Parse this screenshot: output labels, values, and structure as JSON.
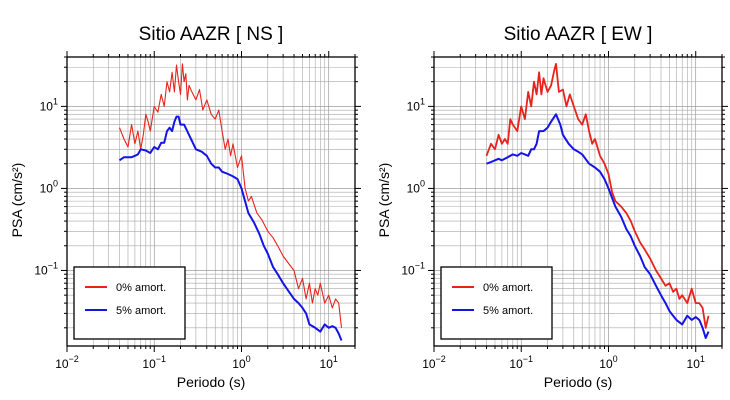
{
  "chart_data": [
    {
      "type": "line",
      "title": "Sitio AAZR [ NS ]",
      "xlabel": "Periodo (s)",
      "ylabel": "PSA (cm/s²)",
      "xscale": "log",
      "yscale": "log",
      "xlim": [
        0.01,
        20
      ],
      "ylim": [
        0.012,
        40
      ],
      "grid": true,
      "legend_position": "bottom-left",
      "xticks": [
        {
          "value": 0.01,
          "base": "10",
          "exp": "−2"
        },
        {
          "value": 0.1,
          "base": "10",
          "exp": "−1"
        },
        {
          "value": 1,
          "base": "10",
          "exp": "0"
        },
        {
          "value": 10,
          "base": "10",
          "exp": "1"
        }
      ],
      "yticks": [
        {
          "value": 0.1,
          "base": "10",
          "exp": "−1"
        },
        {
          "value": 1,
          "base": "10",
          "exp": "0"
        },
        {
          "value": 10,
          "base": "10",
          "exp": "1"
        }
      ],
      "series": [
        {
          "name": "0% amort.",
          "color": "#e8231c",
          "x": [
            0.04,
            0.045,
            0.05,
            0.055,
            0.06,
            0.065,
            0.07,
            0.075,
            0.08,
            0.085,
            0.09,
            0.1,
            0.11,
            0.12,
            0.13,
            0.14,
            0.15,
            0.16,
            0.17,
            0.18,
            0.19,
            0.2,
            0.21,
            0.22,
            0.23,
            0.24,
            0.25,
            0.27,
            0.3,
            0.33,
            0.36,
            0.4,
            0.45,
            0.5,
            0.55,
            0.6,
            0.65,
            0.7,
            0.75,
            0.8,
            0.9,
            1.0,
            1.1,
            1.2,
            1.3,
            1.5,
            1.7,
            2.0,
            2.3,
            2.6,
            3.0,
            3.5,
            4.0,
            4.5,
            5.0,
            5.5,
            6.0,
            6.5,
            7.0,
            7.5,
            8.0,
            9.0,
            10.0,
            11.0,
            12.0,
            13.0,
            14.0
          ],
          "values": [
            5.5,
            4.0,
            3.2,
            6.0,
            3.5,
            5.0,
            3.0,
            4.5,
            8.0,
            6.5,
            5.0,
            10.0,
            8.5,
            14.0,
            10.0,
            20.0,
            15.0,
            26.0,
            15.0,
            32.0,
            20.0,
            14.0,
            33.0,
            20.0,
            25.0,
            12.0,
            18.0,
            15.0,
            12.0,
            16.0,
            9.0,
            12.0,
            8.0,
            7.0,
            9.0,
            5.0,
            3.0,
            4.0,
            2.5,
            3.5,
            1.8,
            2.5,
            1.0,
            0.7,
            0.8,
            0.5,
            0.42,
            0.3,
            0.25,
            0.2,
            0.15,
            0.12,
            0.1,
            0.06,
            0.08,
            0.045,
            0.07,
            0.04,
            0.06,
            0.05,
            0.07,
            0.04,
            0.05,
            0.035,
            0.045,
            0.04,
            0.02
          ]
        },
        {
          "name": "5% amort.",
          "color": "#1414e6",
          "x": [
            0.04,
            0.045,
            0.05,
            0.055,
            0.06,
            0.065,
            0.07,
            0.08,
            0.09,
            0.1,
            0.11,
            0.12,
            0.13,
            0.14,
            0.15,
            0.16,
            0.17,
            0.18,
            0.19,
            0.2,
            0.22,
            0.25,
            0.28,
            0.3,
            0.35,
            0.4,
            0.45,
            0.5,
            0.55,
            0.6,
            0.7,
            0.8,
            0.9,
            1.0,
            1.2,
            1.4,
            1.6,
            1.8,
            2.0,
            2.3,
            2.6,
            3.0,
            3.5,
            4.0,
            4.5,
            5.0,
            5.5,
            6.0,
            7.0,
            8.0,
            9.0,
            10.0,
            11.0,
            12.0,
            13.0,
            14.0
          ],
          "values": [
            2.2,
            2.4,
            2.4,
            2.4,
            2.5,
            2.6,
            3.0,
            2.9,
            2.7,
            3.2,
            3.0,
            3.6,
            3.6,
            5.0,
            5.5,
            5.0,
            6.5,
            7.5,
            7.5,
            6.0,
            6.0,
            4.5,
            3.5,
            3.0,
            2.8,
            2.5,
            2.0,
            1.8,
            1.8,
            1.6,
            1.5,
            1.4,
            1.3,
            1.0,
            0.5,
            0.38,
            0.28,
            0.2,
            0.16,
            0.11,
            0.09,
            0.07,
            0.055,
            0.045,
            0.04,
            0.035,
            0.03,
            0.022,
            0.02,
            0.018,
            0.022,
            0.02,
            0.021,
            0.02,
            0.017,
            0.014
          ]
        }
      ]
    },
    {
      "type": "line",
      "title": "Sitio AAZR [ EW ]",
      "xlabel": "Periodo (s)",
      "ylabel": "PSA (cm/s²)",
      "xscale": "log",
      "yscale": "log",
      "xlim": [
        0.01,
        20
      ],
      "ylim": [
        0.012,
        40
      ],
      "grid": true,
      "legend_position": "bottom-left",
      "xticks": [
        {
          "value": 0.01,
          "base": "10",
          "exp": "−2"
        },
        {
          "value": 0.1,
          "base": "10",
          "exp": "−1"
        },
        {
          "value": 1,
          "base": "10",
          "exp": "0"
        },
        {
          "value": 10,
          "base": "10",
          "exp": "1"
        }
      ],
      "yticks": [
        {
          "value": 0.1,
          "base": "10",
          "exp": "−1"
        },
        {
          "value": 1,
          "base": "10",
          "exp": "0"
        },
        {
          "value": 10,
          "base": "10",
          "exp": "1"
        }
      ],
      "series": [
        {
          "name": "0% amort.",
          "color": "#e8231c",
          "x": [
            0.04,
            0.045,
            0.05,
            0.055,
            0.06,
            0.065,
            0.07,
            0.075,
            0.08,
            0.09,
            0.1,
            0.11,
            0.12,
            0.13,
            0.14,
            0.15,
            0.16,
            0.17,
            0.18,
            0.19,
            0.2,
            0.22,
            0.24,
            0.25,
            0.27,
            0.3,
            0.33,
            0.36,
            0.4,
            0.45,
            0.5,
            0.55,
            0.6,
            0.65,
            0.7,
            0.8,
            0.9,
            1.0,
            1.1,
            1.2,
            1.4,
            1.6,
            1.8,
            2.0,
            2.3,
            2.6,
            3.0,
            3.5,
            4.0,
            4.5,
            5.0,
            5.5,
            6.0,
            6.5,
            7.0,
            8.0,
            9.0,
            10.0,
            11.0,
            12.0,
            13.0,
            14.0
          ],
          "values": [
            2.5,
            3.5,
            3.0,
            4.5,
            3.5,
            4.0,
            3.5,
            7.0,
            6.0,
            5.0,
            10.0,
            7.0,
            15.0,
            10.0,
            20.0,
            14.0,
            26.0,
            14.0,
            22.0,
            18.0,
            15.0,
            18.0,
            28.0,
            33.0,
            15.0,
            16.0,
            10.0,
            14.0,
            10.0,
            7.0,
            6.0,
            8.0,
            5.0,
            3.5,
            4.0,
            2.5,
            2.0,
            1.5,
            0.9,
            0.7,
            0.6,
            0.5,
            0.4,
            0.3,
            0.22,
            0.18,
            0.14,
            0.1,
            0.08,
            0.065,
            0.07,
            0.055,
            0.06,
            0.045,
            0.05,
            0.04,
            0.06,
            0.04,
            0.04,
            0.035,
            0.02,
            0.028
          ]
        },
        {
          "name": "5% amort.",
          "color": "#1414e6",
          "x": [
            0.04,
            0.045,
            0.05,
            0.055,
            0.06,
            0.07,
            0.08,
            0.09,
            0.1,
            0.11,
            0.12,
            0.13,
            0.14,
            0.15,
            0.16,
            0.18,
            0.2,
            0.22,
            0.25,
            0.28,
            0.3,
            0.35,
            0.4,
            0.45,
            0.5,
            0.6,
            0.7,
            0.8,
            0.9,
            1.0,
            1.2,
            1.4,
            1.6,
            1.8,
            2.0,
            2.3,
            2.6,
            3.0,
            3.5,
            4.0,
            4.5,
            5.0,
            5.5,
            6.0,
            7.0,
            8.0,
            9.0,
            10.0,
            11.0,
            12.0,
            13.0,
            14.0
          ],
          "values": [
            2.0,
            2.1,
            2.2,
            2.3,
            2.2,
            2.4,
            2.6,
            2.5,
            2.7,
            2.6,
            2.5,
            3.0,
            3.0,
            3.5,
            5.0,
            5.0,
            5.5,
            6.5,
            8.0,
            6.0,
            4.5,
            3.5,
            3.0,
            2.8,
            2.6,
            2.0,
            1.8,
            1.6,
            1.3,
            1.0,
            0.6,
            0.45,
            0.32,
            0.26,
            0.2,
            0.15,
            0.11,
            0.09,
            0.065,
            0.05,
            0.04,
            0.032,
            0.028,
            0.025,
            0.022,
            0.028,
            0.025,
            0.027,
            0.025,
            0.02,
            0.015,
            0.018
          ]
        }
      ]
    }
  ]
}
